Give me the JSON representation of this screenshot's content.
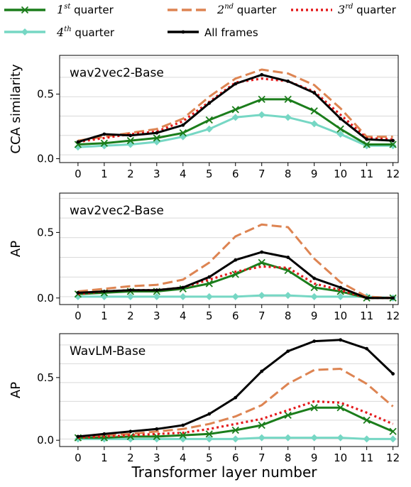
{
  "legend": {
    "entries": [
      {
        "series": "q1",
        "label_main": "1",
        "label_sup": "st",
        "label_rest": " quarter"
      },
      {
        "series": "q2",
        "label_main": "2",
        "label_sup": "nd",
        "label_rest": " quarter"
      },
      {
        "series": "q3",
        "label_main": "3",
        "label_sup": "rd",
        "label_rest": " quarter"
      },
      {
        "series": "q4",
        "label_main": "4",
        "label_sup": "th",
        "label_rest": " quarter"
      },
      {
        "series": "all",
        "label_text": "All frames"
      }
    ]
  },
  "styles": {
    "q1": {
      "color": "#1b7d1b",
      "dash": "",
      "marker": "x"
    },
    "q2": {
      "color": "#dd8452",
      "dash": "14,6",
      "marker": "none"
    },
    "q3": {
      "color": "#e41a1c",
      "dash": "3,4",
      "marker": "none"
    },
    "q4": {
      "color": "#76d7c4",
      "dash": "",
      "marker": "diamond"
    },
    "all": {
      "color": "#000000",
      "dash": "",
      "marker": "dot"
    }
  },
  "xlabel": "Transformer layer number",
  "chart_data": [
    {
      "type": "line",
      "title": "wav2vec2-Base",
      "ylabel": "CCA similarity",
      "x": [
        0,
        1,
        2,
        3,
        4,
        5,
        6,
        7,
        8,
        9,
        10,
        11,
        12
      ],
      "xticks": [
        "0",
        "1",
        "2",
        "3",
        "4",
        "5",
        "6",
        "7",
        "8",
        "9",
        "10",
        "11",
        "12"
      ],
      "yticks": [
        0.0,
        0.5
      ],
      "yticklabels": [
        "0.0",
        "0.5"
      ],
      "ylim": [
        -0.03,
        0.8
      ],
      "grid": "y",
      "series": [
        {
          "key": "q1",
          "name": "1st quarter",
          "values": [
            0.11,
            0.12,
            0.14,
            0.16,
            0.2,
            0.3,
            0.38,
            0.46,
            0.46,
            0.37,
            0.23,
            0.11,
            0.11
          ]
        },
        {
          "key": "q2",
          "name": "2nd quarter",
          "values": [
            0.14,
            0.17,
            0.2,
            0.23,
            0.31,
            0.48,
            0.62,
            0.69,
            0.66,
            0.57,
            0.39,
            0.17,
            0.17
          ]
        },
        {
          "key": "q3",
          "name": "3rd quarter",
          "values": [
            0.13,
            0.16,
            0.19,
            0.21,
            0.29,
            0.44,
            0.59,
            0.62,
            0.6,
            0.52,
            0.34,
            0.16,
            0.15
          ]
        },
        {
          "key": "q4",
          "name": "4th quarter",
          "values": [
            0.09,
            0.1,
            0.11,
            0.13,
            0.17,
            0.23,
            0.32,
            0.34,
            0.32,
            0.27,
            0.19,
            0.1,
            0.1
          ]
        },
        {
          "key": "all",
          "name": "All frames",
          "values": [
            0.13,
            0.19,
            0.18,
            0.2,
            0.26,
            0.43,
            0.58,
            0.65,
            0.6,
            0.51,
            0.31,
            0.15,
            0.14
          ]
        }
      ]
    },
    {
      "type": "line",
      "title": "wav2vec2-Base",
      "ylabel": "AP",
      "x": [
        0,
        1,
        2,
        3,
        4,
        5,
        6,
        7,
        8,
        9,
        10,
        11,
        12
      ],
      "xticks": [
        "0",
        "1",
        "2",
        "3",
        "4",
        "5",
        "6",
        "7",
        "8",
        "9",
        "10",
        "11",
        "12"
      ],
      "yticks": [
        0.0,
        0.5
      ],
      "yticklabels": [
        "0.0",
        "0.5"
      ],
      "ylim": [
        -0.05,
        0.8
      ],
      "grid": "y",
      "series": [
        {
          "key": "q1",
          "name": "1st quarter",
          "values": [
            0.03,
            0.04,
            0.05,
            0.05,
            0.07,
            0.11,
            0.18,
            0.27,
            0.21,
            0.08,
            0.05,
            0.0,
            0.0
          ]
        },
        {
          "key": "q2",
          "name": "2nd quarter",
          "values": [
            0.05,
            0.07,
            0.09,
            0.1,
            0.14,
            0.27,
            0.47,
            0.56,
            0.54,
            0.3,
            0.12,
            0.01,
            0.0
          ]
        },
        {
          "key": "q3",
          "name": "3rd quarter",
          "values": [
            0.03,
            0.05,
            0.06,
            0.06,
            0.08,
            0.14,
            0.2,
            0.24,
            0.23,
            0.11,
            0.06,
            0.0,
            0.0
          ]
        },
        {
          "key": "q4",
          "name": "4th quarter",
          "values": [
            0.01,
            0.01,
            0.01,
            0.01,
            0.01,
            0.01,
            0.01,
            0.02,
            0.02,
            0.01,
            0.01,
            0.01,
            0.0
          ]
        },
        {
          "key": "all",
          "name": "All frames",
          "values": [
            0.04,
            0.05,
            0.06,
            0.06,
            0.08,
            0.16,
            0.29,
            0.35,
            0.31,
            0.15,
            0.08,
            0.0,
            0.0
          ]
        }
      ]
    },
    {
      "type": "line",
      "title": "WavLM-Base",
      "ylabel": "AP",
      "x": [
        0,
        1,
        2,
        3,
        4,
        5,
        6,
        7,
        8,
        9,
        10,
        11,
        12
      ],
      "xticks": [
        "0",
        "1",
        "2",
        "3",
        "4",
        "5",
        "6",
        "7",
        "8",
        "9",
        "10",
        "11",
        "12"
      ],
      "yticks": [
        0.0,
        0.5
      ],
      "yticklabels": [
        "0.0",
        "0.5"
      ],
      "ylim": [
        -0.05,
        0.85
      ],
      "grid": "y",
      "series": [
        {
          "key": "q1",
          "name": "1st quarter",
          "values": [
            0.02,
            0.02,
            0.03,
            0.03,
            0.04,
            0.05,
            0.08,
            0.12,
            0.2,
            0.26,
            0.26,
            0.16,
            0.07
          ]
        },
        {
          "key": "q2",
          "name": "2nd quarter",
          "values": [
            0.03,
            0.04,
            0.05,
            0.07,
            0.09,
            0.13,
            0.19,
            0.28,
            0.45,
            0.56,
            0.57,
            0.45,
            0.27
          ]
        },
        {
          "key": "q3",
          "name": "3rd quarter",
          "values": [
            0.02,
            0.03,
            0.04,
            0.05,
            0.06,
            0.09,
            0.13,
            0.17,
            0.24,
            0.31,
            0.3,
            0.22,
            0.13
          ]
        },
        {
          "key": "q4",
          "name": "4th quarter",
          "values": [
            0.01,
            0.01,
            0.01,
            0.01,
            0.01,
            0.01,
            0.01,
            0.02,
            0.02,
            0.02,
            0.02,
            0.01,
            0.01
          ]
        },
        {
          "key": "all",
          "name": "All frames",
          "values": [
            0.03,
            0.05,
            0.07,
            0.09,
            0.12,
            0.21,
            0.34,
            0.55,
            0.71,
            0.79,
            0.8,
            0.73,
            0.53
          ]
        }
      ]
    }
  ]
}
